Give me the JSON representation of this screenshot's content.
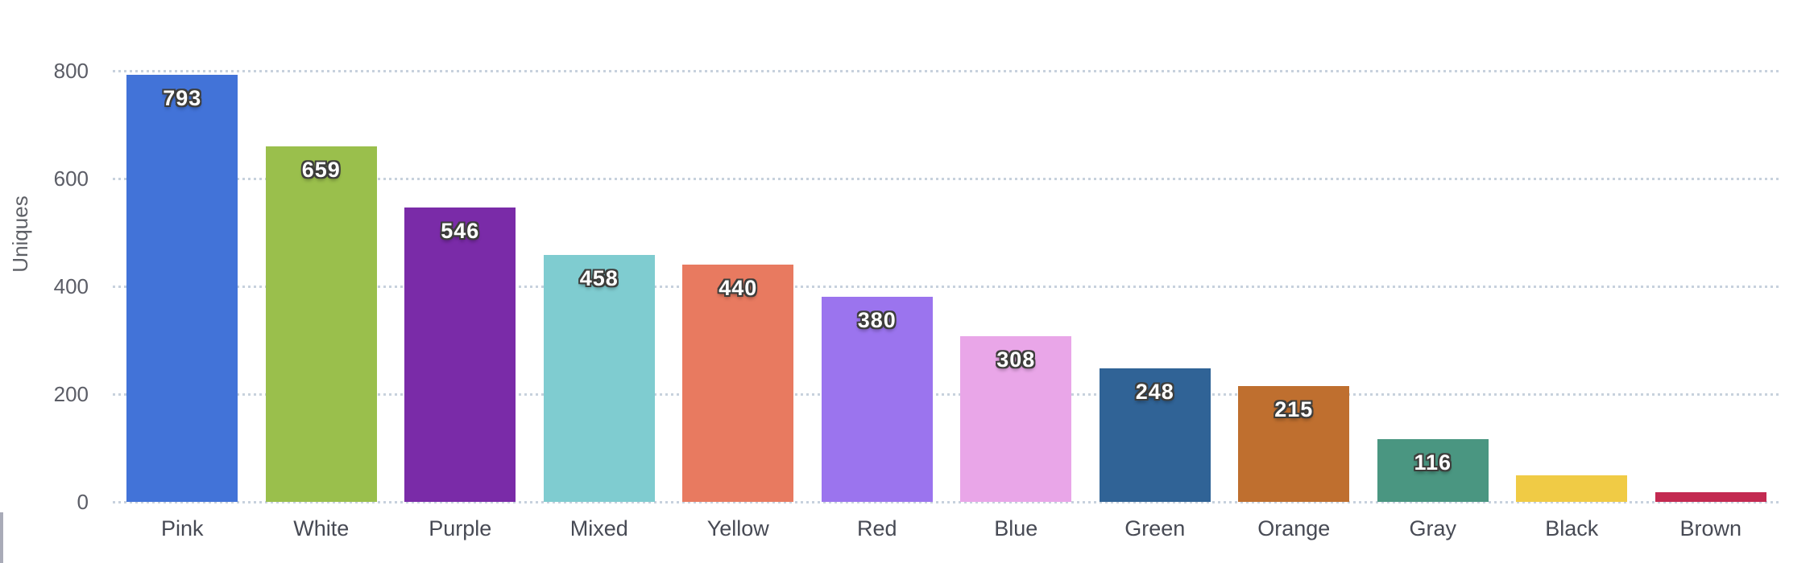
{
  "chart_data": {
    "type": "bar",
    "title": "",
    "ylabel": "Uniques",
    "xlabel": "",
    "ylim": [
      0,
      800
    ],
    "yticks": [
      0,
      200,
      400,
      600,
      800
    ],
    "grid": "horizontal-dotted",
    "legend_position": "none",
    "categories": [
      "Pink",
      "White",
      "Purple",
      "Mixed",
      "Yellow",
      "Red",
      "Blue",
      "Green",
      "Orange",
      "Gray",
      "Black",
      "Brown"
    ],
    "values": [
      793,
      659,
      546,
      458,
      440,
      380,
      308,
      248,
      215,
      116,
      50,
      18
    ],
    "value_labels": [
      "793",
      "659",
      "546",
      "458",
      "440",
      "380",
      "308",
      "248",
      "215",
      "116",
      "",
      ""
    ],
    "bar_colors": [
      "#4273d8",
      "#9abf4c",
      "#7a2ba8",
      "#7fccd0",
      "#e87a60",
      "#9b74ee",
      "#e9a6e8",
      "#306396",
      "#bf6f2f",
      "#4a9681",
      "#f0cb45",
      "#c32a51"
    ]
  },
  "colors": {
    "background": "#ffffff",
    "gridline": "#c7d1dd",
    "tick_text": "#5b5d66",
    "x_label_text": "#474a54",
    "y_title_text": "#5e6066",
    "value_text": "#ffffff",
    "value_outline": "#3d3d3b",
    "scrollbar": "#a9abb8"
  }
}
